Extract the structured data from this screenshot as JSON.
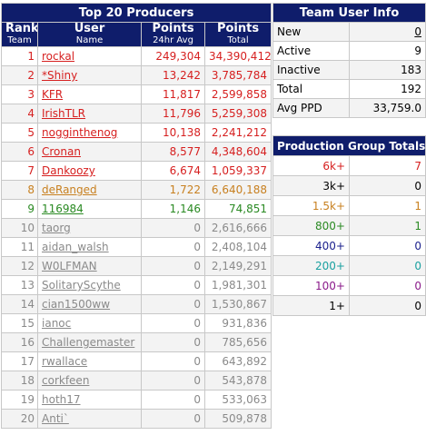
{
  "producers": {
    "title": "Top 20 Producers",
    "headers": {
      "rank_main": "Rank",
      "rank_sub": "Team",
      "user_main": "User",
      "user_sub": "Name",
      "points24_main": "Points",
      "points24_sub": "24hr Avg",
      "points_main": "Points",
      "points_sub": "Total"
    },
    "rows": [
      {
        "rank": "1",
        "name": "rockal",
        "avg": "249,304",
        "total": "34,390,412",
        "color": "red"
      },
      {
        "rank": "2",
        "name": "*Shiny",
        "avg": "13,242",
        "total": "3,785,784",
        "color": "red"
      },
      {
        "rank": "3",
        "name": "KFR",
        "avg": "11,817",
        "total": "2,599,858",
        "color": "red"
      },
      {
        "rank": "4",
        "name": "IrishTLR",
        "avg": "11,796",
        "total": "5,259,308",
        "color": "red"
      },
      {
        "rank": "5",
        "name": "nogginthenog",
        "avg": "10,138",
        "total": "2,241,212",
        "color": "red"
      },
      {
        "rank": "6",
        "name": "Cronan",
        "avg": "8,577",
        "total": "4,348,604",
        "color": "red"
      },
      {
        "rank": "7",
        "name": "Dankoozy",
        "avg": "6,674",
        "total": "1,059,337",
        "color": "red"
      },
      {
        "rank": "8",
        "name": "deRanged",
        "avg": "1,722",
        "total": "6,640,188",
        "color": "orange"
      },
      {
        "rank": "9",
        "name": "116984",
        "avg": "1,146",
        "total": "74,851",
        "color": "green"
      },
      {
        "rank": "10",
        "name": "taorg",
        "avg": "0",
        "total": "2,616,666",
        "color": "gray"
      },
      {
        "rank": "11",
        "name": "aidan_walsh",
        "avg": "0",
        "total": "2,408,104",
        "color": "gray"
      },
      {
        "rank": "12",
        "name": "W0LFMAN",
        "avg": "0",
        "total": "2,149,291",
        "color": "gray"
      },
      {
        "rank": "13",
        "name": "SolitaryScythe",
        "avg": "0",
        "total": "1,981,301",
        "color": "gray"
      },
      {
        "rank": "14",
        "name": "cian1500ww",
        "avg": "0",
        "total": "1,530,867",
        "color": "gray"
      },
      {
        "rank": "15",
        "name": "ianoc",
        "avg": "0",
        "total": "931,836",
        "color": "gray"
      },
      {
        "rank": "16",
        "name": "Challengemaster",
        "avg": "0",
        "total": "785,656",
        "color": "gray"
      },
      {
        "rank": "17",
        "name": "rwallace",
        "avg": "0",
        "total": "643,892",
        "color": "gray"
      },
      {
        "rank": "18",
        "name": "corkfeen",
        "avg": "0",
        "total": "543,878",
        "color": "gray"
      },
      {
        "rank": "19",
        "name": "hoth17",
        "avg": "0",
        "total": "533,063",
        "color": "gray"
      },
      {
        "rank": "20",
        "name": "Anti`",
        "avg": "0",
        "total": "509,878",
        "color": "gray"
      }
    ]
  },
  "team_info": {
    "title": "Team User Info",
    "rows": [
      {
        "label": "New",
        "value": "0",
        "link": true
      },
      {
        "label": "Active",
        "value": "9",
        "link": false
      },
      {
        "label": "Inactive",
        "value": "183",
        "link": false
      },
      {
        "label": "Total",
        "value": "192",
        "link": false
      },
      {
        "label": "Avg PPD",
        "value": "33,759.0",
        "link": false
      }
    ]
  },
  "groups": {
    "title": "Production Group Totals",
    "rows": [
      {
        "label": "6k+",
        "value": "7",
        "color": "red"
      },
      {
        "label": "3k+",
        "value": "0",
        "color": "black"
      },
      {
        "label": "1.5k+",
        "value": "1",
        "color": "orange"
      },
      {
        "label": "800+",
        "value": "1",
        "color": "green"
      },
      {
        "label": "400+",
        "value": "0",
        "color": "navy"
      },
      {
        "label": "200+",
        "value": "0",
        "color": "teal"
      },
      {
        "label": "100+",
        "value": "0",
        "color": "purple"
      },
      {
        "label": "1+",
        "value": "0",
        "color": "black"
      }
    ]
  },
  "colors": {
    "header_bg": "#0f1d6b",
    "red": "#d61f1f",
    "orange": "#c88020",
    "green": "#2a8a23",
    "gray": "#8a8a8a",
    "navy": "#1a1f8c",
    "teal": "#1aa0a0",
    "purple": "#8a1a8a"
  }
}
